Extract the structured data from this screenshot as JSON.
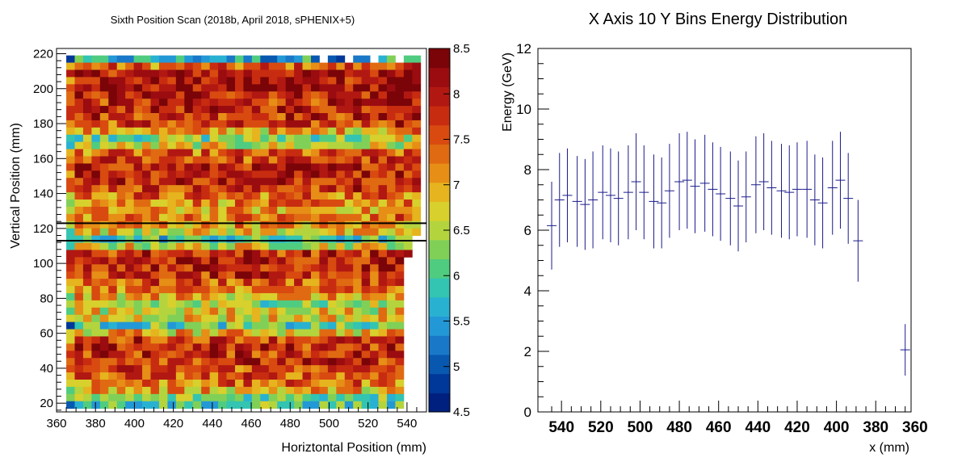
{
  "chart_data": [
    {
      "type": "heatmap",
      "title": "Sixth Position Scan (2018b, April 2018, sPHENIX+5)",
      "xlabel": "Horiztontal Position (mm)",
      "ylabel": "Vertical Position (mm)",
      "xlim": [
        360,
        550
      ],
      "ylim": [
        15,
        223
      ],
      "x_ticks": [
        360,
        380,
        400,
        420,
        440,
        460,
        480,
        500,
        520,
        540
      ],
      "y_ticks": [
        20,
        40,
        60,
        80,
        100,
        120,
        140,
        160,
        180,
        200,
        220
      ],
      "x_bin_edges_range": [
        365,
        547
      ],
      "y_bin_edges_range": [
        17,
        219
      ],
      "nx": 42,
      "ny": 49,
      "zlim": [
        4.5,
        8.5
      ],
      "colorbar_ticks": [
        "8.5",
        "8",
        "7.5",
        "7",
        "6.5",
        "6",
        "5.5",
        "5",
        "4.5"
      ],
      "colormap": [
        "#00207f",
        "#00389a",
        "#0858b0",
        "#1a78c8",
        "#2398d6",
        "#29b1d2",
        "#33c4b2",
        "#50cc80",
        "#80d058",
        "#b4d43e",
        "#d8d02c",
        "#e6b41e",
        "#e68e16",
        "#e06a12",
        "#d84a10",
        "#c82c10",
        "#b21812",
        "#9a0c10",
        "#7a0408"
      ],
      "selection_lines_y": [
        113,
        123
      ],
      "band_pattern_note": "",
      "row_levels_by_y": {
        "219": 5.0,
        "214": 7.4,
        "209": 8.0,
        "205": 8.0,
        "200": 8.1,
        "196": 7.9,
        "192": 7.8,
        "188": 7.9,
        "184": 7.8,
        "180": 7.6,
        "175": 7.0,
        "171": 6.3,
        "167": 6.6,
        "163": 7.4,
        "159": 7.6,
        "155": 7.9,
        "150": 8.0,
        "146": 7.9,
        "142": 7.7,
        "138": 7.4,
        "134": 7.2,
        "130": 7.0,
        "126": 7.3,
        "121": 7.1,
        "117": 6.8,
        "113": 5.9,
        "109": 6.7,
        "105": 7.8,
        "101": 7.9,
        "97": 7.9,
        "92": 7.7,
        "88": 7.5,
        "84": 7.3,
        "80": 7.0,
        "76": 6.4,
        "72": 6.8,
        "68": 6.8,
        "64": 6.0,
        "59": 6.9,
        "55": 7.7,
        "51": 7.8,
        "47": 7.8,
        "43": 7.8,
        "39": 7.6,
        "35": 7.5,
        "30": 7.3,
        "26": 7.0,
        "22": 6.2,
        "18": 6.0
      }
    },
    {
      "type": "scatter",
      "title": "X Axis 10 Y Bins Energy Distribution",
      "xlabel": "x (mm)",
      "ylabel": "Energy (GeV)",
      "x_reversed": true,
      "xlim": [
        362,
        552
      ],
      "ylim": [
        0,
        12
      ],
      "x_ticks": [
        540,
        520,
        500,
        480,
        460,
        440,
        420,
        400,
        380,
        360
      ],
      "y_ticks": [
        0,
        2,
        4,
        6,
        8,
        10,
        12
      ],
      "points": [
        {
          "x": 545,
          "y": 6.15,
          "err": 1.45
        },
        {
          "x": 541,
          "y": 7.0,
          "err": 1.55
        },
        {
          "x": 537,
          "y": 7.15,
          "err": 1.55
        },
        {
          "x": 532,
          "y": 6.95,
          "err": 1.5
        },
        {
          "x": 528,
          "y": 6.85,
          "err": 1.5
        },
        {
          "x": 524,
          "y": 7.0,
          "err": 1.6
        },
        {
          "x": 519,
          "y": 7.25,
          "err": 1.55
        },
        {
          "x": 515,
          "y": 7.15,
          "err": 1.55
        },
        {
          "x": 511,
          "y": 7.05,
          "err": 1.55
        },
        {
          "x": 506,
          "y": 7.25,
          "err": 1.55
        },
        {
          "x": 502,
          "y": 7.6,
          "err": 1.6
        },
        {
          "x": 498,
          "y": 7.25,
          "err": 1.55
        },
        {
          "x": 493,
          "y": 6.95,
          "err": 1.55
        },
        {
          "x": 489,
          "y": 6.9,
          "err": 1.5
        },
        {
          "x": 485,
          "y": 7.3,
          "err": 1.55
        },
        {
          "x": 480,
          "y": 7.6,
          "err": 1.6
        },
        {
          "x": 476,
          "y": 7.65,
          "err": 1.6
        },
        {
          "x": 472,
          "y": 7.45,
          "err": 1.55
        },
        {
          "x": 467,
          "y": 7.55,
          "err": 1.6
        },
        {
          "x": 463,
          "y": 7.35,
          "err": 1.55
        },
        {
          "x": 459,
          "y": 7.2,
          "err": 1.55
        },
        {
          "x": 454,
          "y": 7.05,
          "err": 1.55
        },
        {
          "x": 450,
          "y": 6.8,
          "err": 1.5
        },
        {
          "x": 446,
          "y": 7.1,
          "err": 1.5
        },
        {
          "x": 441,
          "y": 7.5,
          "err": 1.6
        },
        {
          "x": 437,
          "y": 7.6,
          "err": 1.6
        },
        {
          "x": 433,
          "y": 7.4,
          "err": 1.55
        },
        {
          "x": 428,
          "y": 7.3,
          "err": 1.55
        },
        {
          "x": 424,
          "y": 7.25,
          "err": 1.55
        },
        {
          "x": 420,
          "y": 7.35,
          "err": 1.55
        },
        {
          "x": 415,
          "y": 7.35,
          "err": 1.6
        },
        {
          "x": 411,
          "y": 7.0,
          "err": 1.5
        },
        {
          "x": 407,
          "y": 6.9,
          "err": 1.5
        },
        {
          "x": 402,
          "y": 7.4,
          "err": 1.55
        },
        {
          "x": 398,
          "y": 7.65,
          "err": 1.6
        },
        {
          "x": 394,
          "y": 7.05,
          "err": 1.5
        },
        {
          "x": 389,
          "y": 5.65,
          "err": 1.35
        },
        {
          "x": 365,
          "y": 2.05,
          "err": 0.85
        }
      ]
    }
  ]
}
